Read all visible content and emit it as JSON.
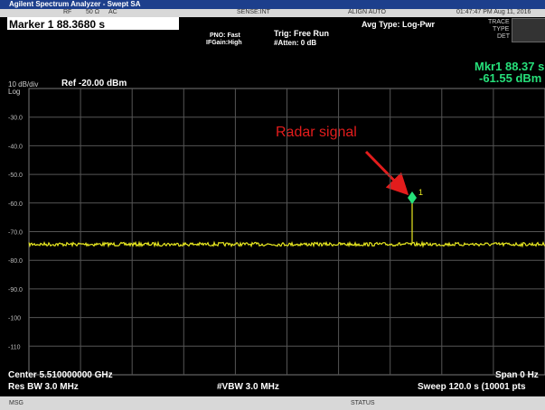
{
  "title_bar": "Agilent Spectrum Analyzer - Swept SA",
  "status_row": [
    "RF",
    "50 Ω",
    "AC",
    "SENSE:INT",
    "ALIGN AUTO",
    "01:47:47 PM Aug 11, 2016"
  ],
  "marker_header": "Marker 1 88.3680 s",
  "settings": {
    "pno": "PNO: Fast",
    "ifgain": "IFGain:High",
    "trig": "Trig: Free Run",
    "atten": "#Atten: 0 dB",
    "avg": "Avg Type: Log-Pwr",
    "trace": "TRACE",
    "type": "TYPE",
    "det": "DET"
  },
  "scale": {
    "div": "10 dB/div",
    "log": "Log",
    "ref": "Ref -20.00 dBm"
  },
  "readout": {
    "time": "Mkr1 88.37 s",
    "level": "-61.55 dBm"
  },
  "level_labels": [
    "-30.0",
    "-40.0",
    "-50.0",
    "-60.0",
    "-70.0",
    "-80.0",
    "-90.0",
    "-100",
    "-110"
  ],
  "marker_label": "1",
  "annotation": "Radar signal",
  "footer": {
    "center": "Center 5.510000000 GHz",
    "span": "Span 0 Hz",
    "rbw": "Res BW 3.0 MHz",
    "vbw": "#VBW 3.0 MHz",
    "sweep": "Sweep  120.0 s (10001 pts"
  },
  "bottom_bar": {
    "msg": "MSG",
    "status": "STATUS"
  }
}
